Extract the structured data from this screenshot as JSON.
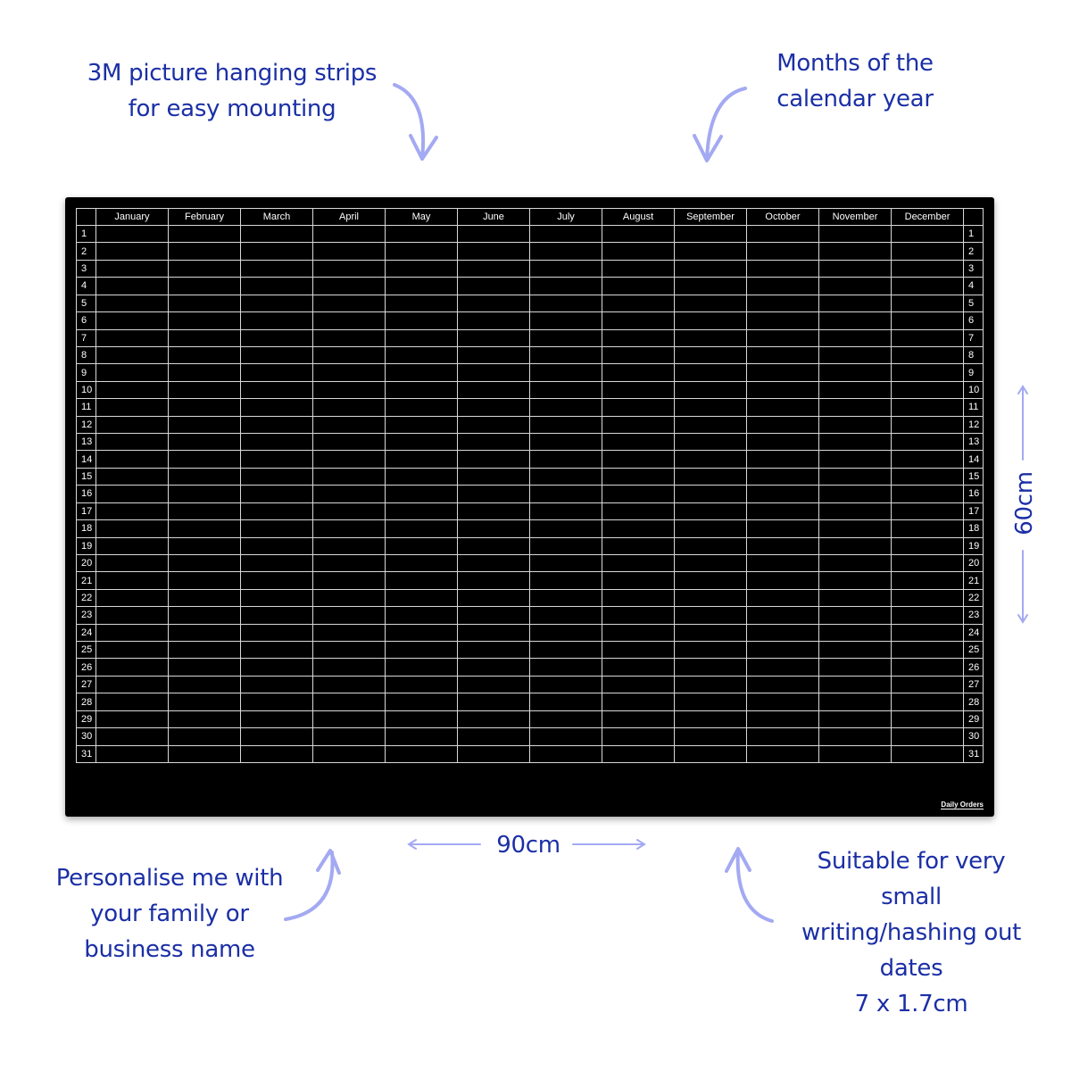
{
  "annotations": {
    "mounting": [
      "3M picture hanging strips",
      "for easy mounting"
    ],
    "months": [
      "Months of the",
      "calendar year"
    ],
    "height": "60cm",
    "width": "90cm",
    "personalise": [
      "Personalise me with",
      "your family or",
      "business name"
    ],
    "suitable": [
      "Suitable for very",
      "small",
      "writing/hashing out",
      "dates",
      "7 x 1.7cm"
    ]
  },
  "planner": {
    "months": [
      "January",
      "February",
      "March",
      "April",
      "May",
      "June",
      "July",
      "August",
      "September",
      "October",
      "November",
      "December"
    ],
    "days": [
      "1",
      "2",
      "3",
      "4",
      "5",
      "6",
      "7",
      "8",
      "9",
      "10",
      "11",
      "12",
      "13",
      "14",
      "15",
      "16",
      "17",
      "18",
      "19",
      "20",
      "21",
      "22",
      "23",
      "24",
      "25",
      "26",
      "27",
      "28",
      "29",
      "30",
      "31"
    ],
    "logo": "Daily Orders"
  },
  "colors": {
    "text": "#1b2fa6",
    "arrow": "#a3a9f2",
    "board": "#000000",
    "gridline": "#d8d8d8"
  }
}
